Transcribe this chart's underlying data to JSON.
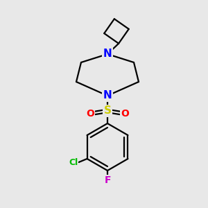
{
  "background_color": "#e8e8e8",
  "bond_color": "#000000",
  "bond_width": 1.6,
  "atom_colors": {
    "N": "#0000ff",
    "S": "#cccc00",
    "O": "#ff0000",
    "Cl": "#00bb00",
    "F": "#cc00cc",
    "C": "#000000"
  },
  "font_size_N": 11,
  "font_size_S": 11,
  "font_size_O": 10,
  "font_size_Cl": 9,
  "font_size_F": 10
}
